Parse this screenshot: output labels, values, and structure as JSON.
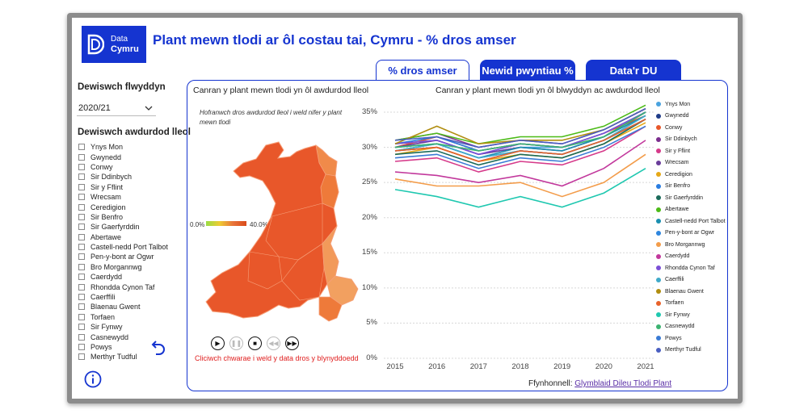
{
  "app": {
    "logo_line1": "Data",
    "logo_line2": "Cymru",
    "title": "Plant mewn tlodi ar ôl costau tai, Cymru - % dros amser"
  },
  "tabs": [
    {
      "label": "% dros amser",
      "active": true
    },
    {
      "label": "Newid pwyntiau %",
      "active": false
    },
    {
      "label": "Data'r DU",
      "active": false
    }
  ],
  "sidebar": {
    "year_heading": "Dewiswch flwyddyn",
    "year_value": "2020/21",
    "la_heading": "Dewiswch awdurdod lleol",
    "authorities": [
      "Ynys Mon",
      "Gwynedd",
      "Conwy",
      "Sir Ddinbych",
      "Sir y Fflint",
      "Wrecsam",
      "Ceredigion",
      "Sir Benfro",
      "Sir Gaerfyrddin",
      "Abertawe",
      "Castell-nedd Port Talbot",
      "Pen-y-bont ar Ogwr",
      "Bro Morgannwg",
      "Caerdydd",
      "Rhondda Cynon Taf",
      "Caerffili",
      "Blaenau Gwent",
      "Torfaen",
      "Sir Fynwy",
      "Casnewydd",
      "Powys",
      "Merthyr Tudful"
    ]
  },
  "map": {
    "title": "Canran y plant mewn tlodi yn ôl awdurdod lleol",
    "hint": "Hofranwch dros awdurdod lleol i weld nifer y plant mewn tlodi",
    "legend_min": "0.0%",
    "legend_max": "40.0%",
    "play_caption": "Cliciwch chwarae i weld y data dros y blynyddoedd"
  },
  "chart_data": {
    "type": "line",
    "title": "Canran y plant mewn tlodi yn ôl blwyddyn ac awdurdod lleol",
    "x": [
      "2015",
      "2016",
      "2017",
      "2018",
      "2019",
      "2020",
      "2021"
    ],
    "ylim": [
      0,
      35
    ],
    "yticks": [
      "0%",
      "5%",
      "10%",
      "15%",
      "20%",
      "25%",
      "30%",
      "35%"
    ],
    "legend_position": "right",
    "grid": true,
    "series": [
      {
        "name": "Ynys Mon",
        "color": "#4aa3df",
        "values": [
          30.5,
          31.0,
          29.0,
          30.0,
          30.0,
          31.5,
          35.0
        ]
      },
      {
        "name": "Gwynedd",
        "color": "#1f3c88",
        "values": [
          29.5,
          30.0,
          28.0,
          29.5,
          29.0,
          31.0,
          34.0
        ]
      },
      {
        "name": "Conwy",
        "color": "#e8572a",
        "values": [
          30.0,
          31.5,
          29.5,
          30.5,
          30.0,
          32.0,
          34.5
        ]
      },
      {
        "name": "Sir Ddinbych",
        "color": "#7b2d8e",
        "values": [
          31.0,
          32.0,
          30.0,
          31.0,
          30.5,
          32.5,
          35.5
        ]
      },
      {
        "name": "Sir y Fflint",
        "color": "#d63a8a",
        "values": [
          28.0,
          28.5,
          26.5,
          28.0,
          27.5,
          29.5,
          33.0
        ]
      },
      {
        "name": "Wrecsam",
        "color": "#6a3d9a",
        "values": [
          30.0,
          31.0,
          29.0,
          30.0,
          29.5,
          31.5,
          35.0
        ]
      },
      {
        "name": "Ceredigion",
        "color": "#e6a817",
        "values": [
          29.0,
          30.0,
          28.0,
          29.0,
          28.5,
          30.5,
          33.5
        ]
      },
      {
        "name": "Sir Benfro",
        "color": "#2a7de1",
        "values": [
          30.5,
          31.5,
          29.5,
          30.5,
          30.0,
          32.0,
          35.0
        ]
      },
      {
        "name": "Sir Gaerfyrddin",
        "color": "#1b6b5a",
        "values": [
          29.0,
          29.5,
          27.5,
          29.0,
          28.5,
          30.5,
          34.0
        ]
      },
      {
        "name": "Abertawe",
        "color": "#4cbb17",
        "values": [
          31.0,
          32.0,
          30.5,
          31.5,
          31.5,
          33.0,
          36.0
        ]
      },
      {
        "name": "Castell-nedd Port Talbot",
        "color": "#1a8fb0",
        "values": [
          30.0,
          30.5,
          28.5,
          30.0,
          29.5,
          31.5,
          34.5
        ]
      },
      {
        "name": "Pen-y-bont ar Ogwr",
        "color": "#2e86de",
        "values": [
          29.5,
          30.5,
          28.5,
          29.5,
          29.0,
          31.0,
          34.0
        ]
      },
      {
        "name": "Bro Morgannwg",
        "color": "#f39c4a",
        "values": [
          25.5,
          24.5,
          24.5,
          25.0,
          23.0,
          25.0,
          29.0
        ]
      },
      {
        "name": "Caerdydd",
        "color": "#c2389c",
        "values": [
          26.5,
          26.0,
          25.0,
          26.0,
          24.5,
          27.0,
          31.0
        ]
      },
      {
        "name": "Rhondda Cynon Taf",
        "color": "#7b4fd6",
        "values": [
          30.5,
          31.0,
          29.0,
          30.5,
          30.0,
          32.0,
          35.0
        ]
      },
      {
        "name": "Caerffili",
        "color": "#3fa9c9",
        "values": [
          29.5,
          30.5,
          28.5,
          29.5,
          29.0,
          31.0,
          34.5
        ]
      },
      {
        "name": "Blaenau Gwent",
        "color": "#b08d0f",
        "values": [
          30.5,
          33.0,
          30.5,
          31.0,
          31.0,
          32.5,
          35.5
        ]
      },
      {
        "name": "Torfaen",
        "color": "#e8622a",
        "values": [
          29.5,
          30.0,
          28.0,
          29.5,
          29.0,
          31.0,
          34.0
        ]
      },
      {
        "name": "Sir Fynwy",
        "color": "#1fc8b0",
        "values": [
          24.0,
          23.0,
          21.5,
          23.0,
          21.5,
          23.5,
          27.0
        ]
      },
      {
        "name": "Casnewydd",
        "color": "#3cb371",
        "values": [
          30.0,
          30.5,
          29.5,
          30.5,
          30.0,
          31.5,
          35.0
        ]
      },
      {
        "name": "Powys",
        "color": "#3a7bd5",
        "values": [
          28.5,
          29.0,
          27.0,
          28.5,
          28.0,
          30.0,
          33.0
        ]
      },
      {
        "name": "Merthyr Tudful",
        "color": "#4a5fc1",
        "values": [
          31.0,
          31.5,
          30.0,
          31.0,
          30.5,
          32.5,
          35.5
        ]
      }
    ]
  },
  "footer": {
    "source_label": "Ffynhonnell:",
    "source_link": "Glymblaid Dileu Tlodi Plant"
  }
}
